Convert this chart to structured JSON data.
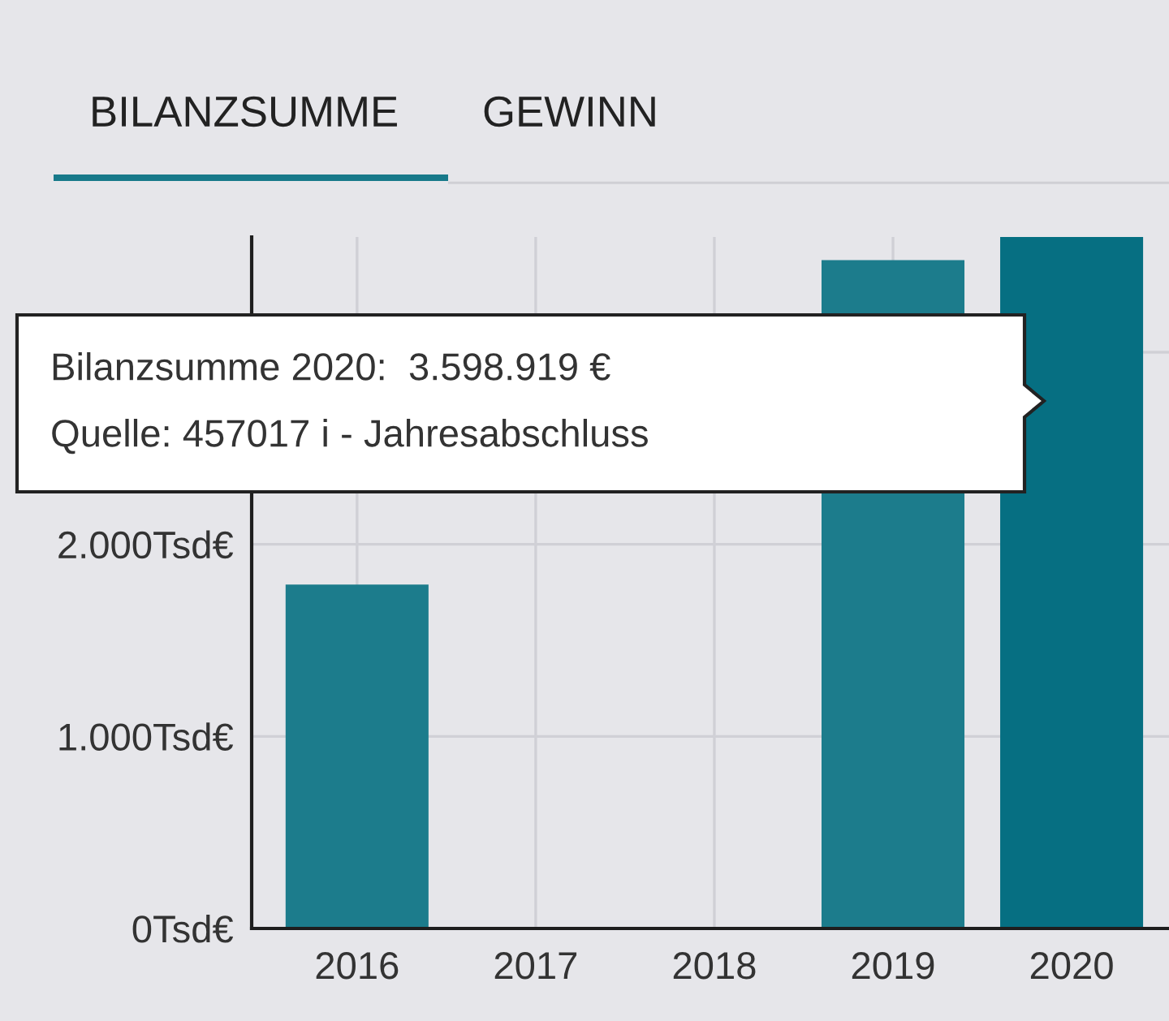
{
  "chart_data": {
    "type": "bar",
    "title": "BILANZSUMME",
    "annotations": [
      "GEWINN",
      "Bilanzsumme 2020:  3.598.919 €",
      "Quelle: 457017 i - Jahresabschluss"
    ],
    "categories": [
      "2016",
      "2017",
      "2018",
      "2019",
      "2020"
    ],
    "values": [
      1790,
      null,
      null,
      3480,
      3600
    ],
    "colors": [
      "#1c7c8c",
      "#1c7c8c",
      "#1c7c8c",
      "#1c7c8c",
      "#066f82"
    ],
    "ylim": [
      0,
      3600
    ],
    "yticks": [
      {
        "value": 0,
        "label": "0Tsd€"
      },
      {
        "value": 1000,
        "label": "1.000Tsd€"
      },
      {
        "value": 2000,
        "label": "2.000Tsd€"
      },
      {
        "value": 3000,
        "label": null
      }
    ],
    "grid": true
  }
}
